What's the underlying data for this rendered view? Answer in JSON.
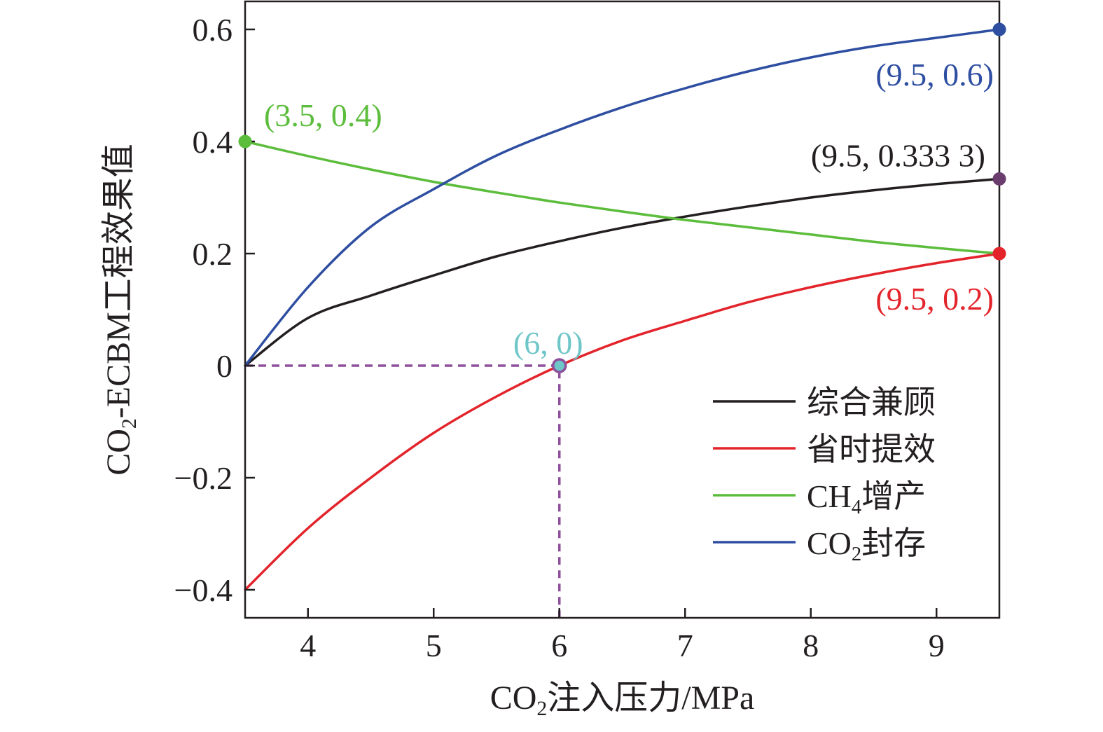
{
  "chart_data": {
    "type": "line",
    "xlabel": {
      "pre": "CO",
      "sub": "2",
      "post": "注入压力/MPa"
    },
    "ylabel": {
      "pre": "CO",
      "sub": "2",
      "post": "-ECBM工程效果值"
    },
    "xlim": [
      3.5,
      9.5
    ],
    "ylim": [
      -0.45,
      0.65
    ],
    "xticks": [
      4,
      5,
      6,
      7,
      8,
      9
    ],
    "xtick_labels": [
      "4",
      "5",
      "6",
      "7",
      "8",
      "9"
    ],
    "yticks": [
      -0.4,
      -0.2,
      0,
      0.2,
      0.4,
      0.6
    ],
    "ytick_labels": [
      "−0.4",
      "−0.2",
      "0",
      "0.2",
      "0.4",
      "0.6"
    ],
    "grid": false,
    "legend_position": "bottom-right",
    "series": [
      {
        "name": {
          "pre": "综合兼顾",
          "sub": "",
          "post": ""
        },
        "color": "#231f20",
        "x": [
          3.5,
          4.0,
          4.5,
          5.0,
          5.5,
          6.0,
          6.5,
          7.0,
          7.5,
          8.0,
          8.5,
          9.0,
          9.5
        ],
        "y": [
          0.0,
          0.085,
          0.125,
          0.161,
          0.195,
          0.222,
          0.246,
          0.266,
          0.284,
          0.3,
          0.313,
          0.324,
          0.3333
        ]
      },
      {
        "name": {
          "pre": "省时提效",
          "sub": "",
          "post": ""
        },
        "color": "#e3242b",
        "x": [
          3.5,
          4.0,
          4.5,
          5.0,
          5.5,
          6.0,
          6.5,
          7.0,
          7.5,
          8.0,
          8.5,
          9.0,
          9.5
        ],
        "y": [
          -0.4,
          -0.29,
          -0.2,
          -0.12,
          -0.055,
          0.0,
          0.045,
          0.08,
          0.113,
          0.14,
          0.163,
          0.183,
          0.2
        ]
      },
      {
        "name": {
          "pre": "CH",
          "sub": "4",
          "post": "增产"
        },
        "color": "#5cbd3c",
        "x": [
          3.5,
          4.0,
          4.5,
          5.0,
          5.5,
          6.0,
          6.5,
          7.0,
          7.5,
          8.0,
          8.5,
          9.0,
          9.5
        ],
        "y": [
          0.4,
          0.374,
          0.35,
          0.328,
          0.309,
          0.291,
          0.275,
          0.26,
          0.247,
          0.234,
          0.221,
          0.21,
          0.2
        ]
      },
      {
        "name": {
          "pre": "CO",
          "sub": "2",
          "post": "封存"
        },
        "color": "#2e4ea1",
        "x": [
          3.5,
          4.0,
          4.5,
          5.0,
          5.5,
          6.0,
          6.5,
          7.0,
          7.5,
          8.0,
          8.5,
          9.0,
          9.5
        ],
        "y": [
          0.0,
          0.14,
          0.248,
          0.315,
          0.375,
          0.421,
          0.461,
          0.495,
          0.525,
          0.55,
          0.57,
          0.585,
          0.6
        ]
      }
    ],
    "markers": [
      {
        "x": 3.5,
        "y": 0.4,
        "color": "#5cbd3c"
      },
      {
        "x": 9.5,
        "y": 0.6,
        "color": "#2e4ea1"
      },
      {
        "x": 9.5,
        "y": 0.3333,
        "color": "#6a3d6e"
      },
      {
        "x": 9.5,
        "y": 0.2,
        "color": "#e3242b"
      },
      {
        "x": 6.0,
        "y": 0.0,
        "color": "#6fc6c8",
        "stroke": "#8e4f9c"
      }
    ],
    "reference_lines": {
      "color": "#8e4f9c",
      "points": [
        {
          "x": 3.5,
          "y": 0.0
        },
        {
          "x": 6.0,
          "y": 0.0
        },
        {
          "x": 6.0,
          "y": -0.45
        }
      ]
    },
    "annotations": [
      {
        "text": "(3.5, 0.4)",
        "x": 3.5,
        "y": 0.4,
        "color": "#5cbd3c",
        "anchor": "upper-right"
      },
      {
        "text": "(9.5, 0.6)",
        "x": 9.5,
        "y": 0.6,
        "color": "#2e4ea1",
        "anchor": "lower-left"
      },
      {
        "text": "(9.5, 0.333 3)",
        "x": 9.5,
        "y": 0.3333,
        "color": "#231f20",
        "anchor": "upper-left"
      },
      {
        "text": "(9.5, 0.2)",
        "x": 9.5,
        "y": 0.2,
        "color": "#e3242b",
        "anchor": "lower-left"
      },
      {
        "text": "(6, 0)",
        "x": 6.0,
        "y": 0.0,
        "color": "#6fc6c8",
        "anchor": "above"
      }
    ]
  }
}
